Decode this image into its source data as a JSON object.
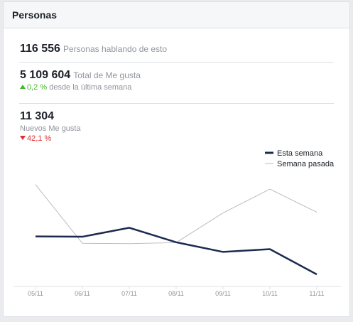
{
  "header": {
    "title": "Personas"
  },
  "stats": {
    "talking": {
      "value": "116 556",
      "label": "Personas hablando de esto"
    },
    "likes": {
      "value": "5 109 604",
      "label": "Total de Me gusta",
      "change": "0,2 %",
      "change_label": "desde la última semana"
    },
    "new_likes": {
      "value": "11 304",
      "label": "Nuevos Me gusta",
      "change": "42,1 %"
    }
  },
  "colors": {
    "this_week": "#1c2a4f",
    "last_week": "#b8bcc2",
    "up": "#42b72a",
    "down": "#e02f2f"
  },
  "chart_data": {
    "type": "line",
    "categories": [
      "05/11",
      "06/11",
      "07/11",
      "08/11",
      "09/11",
      "10/11",
      "11/11"
    ],
    "series": [
      {
        "name": "Esta semana",
        "values": [
          2450,
          2440,
          2700,
          2280,
          2000,
          2080,
          1350
        ]
      },
      {
        "name": "Semana pasada",
        "values": [
          3950,
          2250,
          2240,
          2270,
          3130,
          3820,
          3150
        ]
      }
    ],
    "ylim": [
      1000,
      4500
    ],
    "legend": "top-right",
    "grid": false
  }
}
